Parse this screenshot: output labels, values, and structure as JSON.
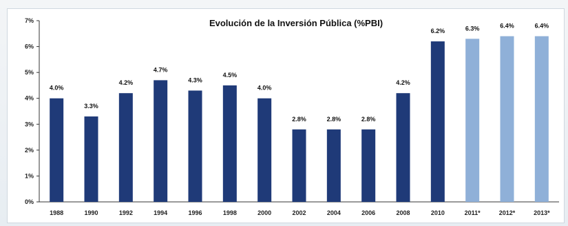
{
  "chart_data": {
    "type": "bar",
    "title": "Evolución de la Inversión Pública (%PBI)",
    "xlabel": "",
    "ylabel": "",
    "ylim": [
      0,
      7
    ],
    "yticks": [
      "0%",
      "1%",
      "2%",
      "3%",
      "4%",
      "5%",
      "6%",
      "7%"
    ],
    "grid": false,
    "categories": [
      "1988",
      "1990",
      "1992",
      "1994",
      "1996",
      "1998",
      "2000",
      "2002",
      "2004",
      "2006",
      "2008",
      "2010",
      "2011*",
      "2012*",
      "2013*"
    ],
    "values": [
      4.0,
      3.3,
      4.2,
      4.7,
      4.3,
      4.5,
      4.0,
      2.8,
      2.8,
      2.8,
      4.2,
      6.2,
      6.3,
      6.4,
      6.4
    ],
    "data_labels": [
      "4.0%",
      "3.3%",
      "4.2%",
      "4.7%",
      "4.3%",
      "4.5%",
      "4.0%",
      "2.8%",
      "2.8%",
      "2.8%",
      "4.2%",
      "6.2%",
      "6.3%",
      "6.4%",
      "6.4%"
    ],
    "colors": {
      "actual": "#1f3a78",
      "projected": "#8fb0d8"
    },
    "projected_flags": [
      false,
      false,
      false,
      false,
      false,
      false,
      false,
      false,
      false,
      false,
      false,
      false,
      true,
      true,
      true
    ]
  }
}
